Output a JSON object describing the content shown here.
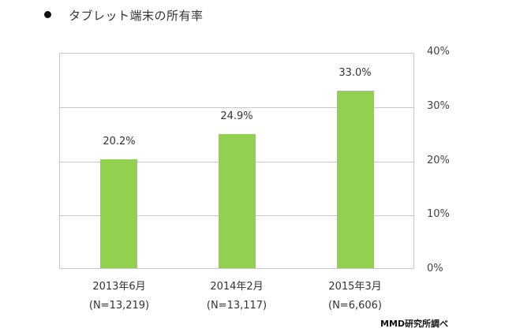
{
  "title": "タブレット端末の所有率",
  "chart_data": {
    "type": "bar",
    "title": "タブレット端末の所有率",
    "categories": [
      "2013年6月",
      "2014年2月",
      "2015年3月"
    ],
    "sample_sizes": [
      "(N=13,219)",
      "(N=13,117)",
      "(N=6,606)"
    ],
    "values": [
      20.2,
      24.9,
      33.0
    ],
    "data_labels": [
      "20.2%",
      "24.9%",
      "33.0%"
    ],
    "xlabel": "",
    "ylabel": "",
    "ylim": [
      0,
      40
    ],
    "yticks": [
      "0%",
      "10%",
      "20%",
      "30%",
      "40%"
    ],
    "y_axis_position": "right",
    "grid": true,
    "bar_color": "#92d050",
    "source": "MMD研究所調べ"
  },
  "x_labels": [
    {
      "date": "2013年6月",
      "n": "(N=13,219)"
    },
    {
      "date": "2014年2月",
      "n": "(N=13,117)"
    },
    {
      "date": "2015年3月",
      "n": "(N=6,606)"
    }
  ],
  "source": "MMD研究所調べ"
}
